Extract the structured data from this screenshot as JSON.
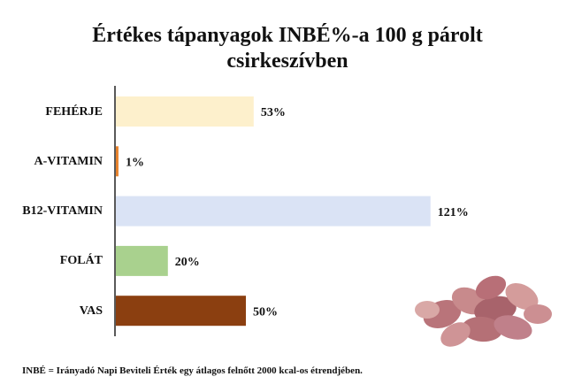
{
  "chart_data": {
    "type": "bar",
    "title": "Értékes tápanyagok INBÉ%-a 100 g párolt csirkeszívben",
    "categories": [
      "FEHÉRJE",
      "A-VITAMIN",
      "B12-VITAMIN",
      "FOLÁT",
      "VAS"
    ],
    "values": [
      53,
      1,
      121,
      20,
      50
    ],
    "value_labels": [
      "53%",
      "1%",
      "121%",
      "20%",
      "50%"
    ],
    "colors": [
      "#fdf0cc",
      "#e8822b",
      "#dae3f5",
      "#a9d18e",
      "#8b3f10"
    ],
    "footnote": "INBÉ = Irányadó Napi Beviteli Érték egy átlagos felnőtt 2000 kcal-os étrendjében."
  }
}
